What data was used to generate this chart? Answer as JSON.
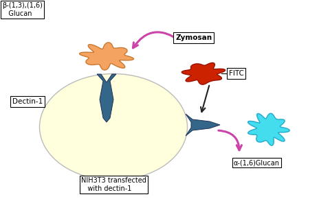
{
  "bg_color": "#ffffff",
  "cell_color": "#ffffdd",
  "cell_edge_color": "#bbbbbb",
  "beta_glucan_color": "#f4a460",
  "beta_glucan_edge": "#c87830",
  "zymosan_color": "#cc2200",
  "zymosan_edge": "#991100",
  "alpha_glucan_color": "#44ddee",
  "alpha_glucan_edge": "#22aacc",
  "dectin_color": "#336688",
  "arrow_pink": "#cc44aa",
  "arrow_black": "#222222",
  "label_beta_glucan": "β-(1,3),(1,6)\n   Glucan",
  "label_dectin": "Dectin-1",
  "label_zymosan": "Zymosan",
  "label_fitc": "FITC",
  "label_alpha_glucan": "α-(1,6)Glucan",
  "label_cell": "NIH3T3 transfected\n   with dectin-1"
}
